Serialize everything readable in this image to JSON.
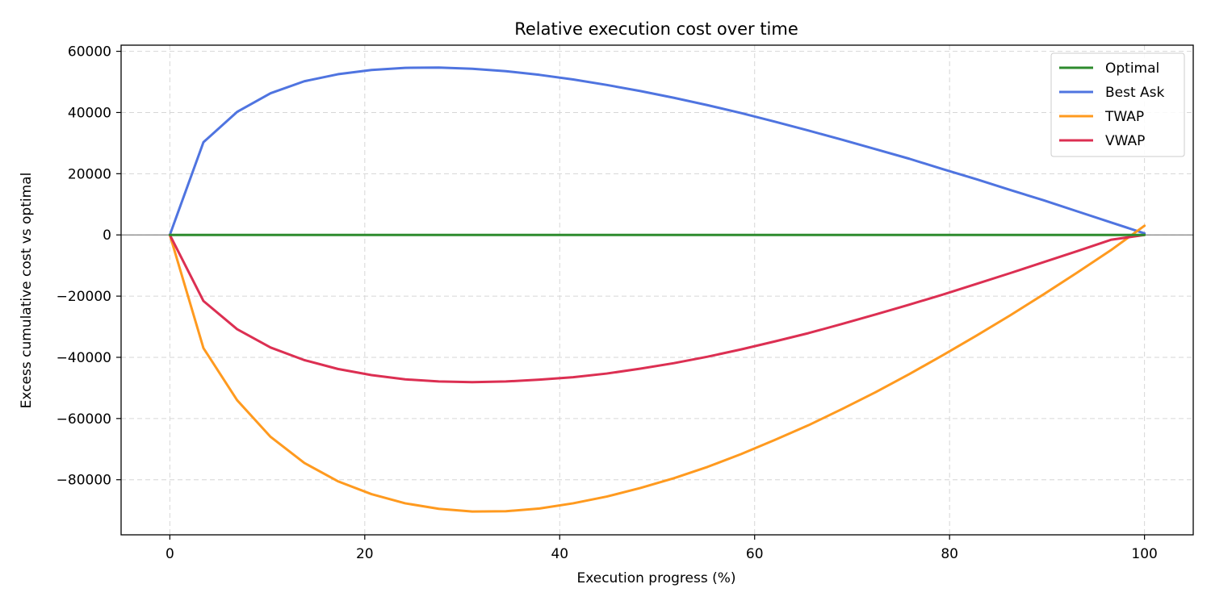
{
  "chart_data": {
    "type": "line",
    "title": "Relative execution cost over time",
    "xlabel": "Execution progress (%)",
    "ylabel": "Excess cumulative cost vs optimal",
    "xlim": [
      -5,
      105
    ],
    "ylim": [
      -98000,
      62000
    ],
    "x_ticks": [
      0,
      20,
      40,
      60,
      80,
      100
    ],
    "y_ticks": [
      -80000,
      -60000,
      -40000,
      -20000,
      0,
      20000,
      40000,
      60000
    ],
    "x_tick_labels": [
      "0",
      "20",
      "40",
      "60",
      "80",
      "100"
    ],
    "y_tick_labels": [
      "−80000",
      "−60000",
      "−40000",
      "−20000",
      "0",
      "20000",
      "40000",
      "60000"
    ],
    "grid": true,
    "legend_position": "top-right",
    "x": [
      0,
      3.45,
      6.9,
      10.34,
      13.79,
      17.24,
      20.69,
      24.14,
      27.59,
      31.03,
      34.48,
      37.93,
      41.38,
      44.83,
      48.28,
      51.72,
      55.17,
      58.62,
      62.07,
      65.52,
      68.97,
      72.41,
      75.86,
      79.31,
      82.76,
      86.21,
      89.66,
      93.1,
      96.55,
      100
    ],
    "series": [
      {
        "name": "Optimal",
        "color": "#2e8b2e",
        "values": [
          0,
          0,
          0,
          0,
          0,
          0,
          0,
          0,
          0,
          0,
          0,
          0,
          0,
          0,
          0,
          0,
          0,
          0,
          0,
          0,
          0,
          0,
          0,
          0,
          0,
          0,
          0,
          0,
          0,
          0
        ]
      },
      {
        "name": "Best Ask",
        "color": "#4f74e0",
        "values": [
          0,
          30300,
          40200,
          46300,
          50200,
          52500,
          53900,
          54600,
          54700,
          54300,
          53500,
          52300,
          50800,
          49000,
          47000,
          44800,
          42400,
          39800,
          37000,
          34100,
          31100,
          28000,
          24900,
          21500,
          18200,
          14700,
          11300,
          7700,
          4100,
          500
        ]
      },
      {
        "name": "TWAP",
        "color": "#ff9a1f",
        "values": [
          0,
          -37000,
          -54000,
          -66000,
          -74500,
          -80500,
          -84700,
          -87700,
          -89500,
          -90400,
          -90300,
          -89400,
          -87700,
          -85500,
          -82700,
          -79500,
          -75800,
          -71600,
          -67000,
          -62200,
          -56900,
          -51400,
          -45500,
          -39300,
          -32900,
          -26300,
          -19400,
          -12300,
          -5000,
          3000
        ]
      },
      {
        "name": "VWAP",
        "color": "#dc2f52",
        "values": [
          0,
          -21600,
          -30800,
          -36800,
          -40900,
          -43800,
          -45800,
          -47200,
          -47900,
          -48100,
          -47900,
          -47300,
          -46500,
          -45300,
          -43700,
          -41900,
          -39800,
          -37400,
          -34800,
          -32100,
          -29100,
          -26000,
          -22800,
          -19500,
          -16000,
          -12500,
          -8900,
          -5300,
          -1600,
          0
        ]
      }
    ]
  }
}
